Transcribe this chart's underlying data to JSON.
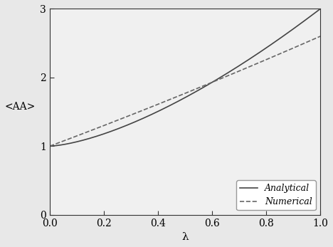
{
  "title": "",
  "xlabel": "λ",
  "ylabel": "<AA>",
  "xlim": [
    0.0,
    1.0
  ],
  "ylim": [
    0.0,
    3.0
  ],
  "xticks": [
    0.0,
    0.2,
    0.4,
    0.6,
    0.8,
    1.0
  ],
  "yticks": [
    0.0,
    1.0,
    2.0,
    3.0
  ],
  "analytical_color": "#444444",
  "numerical_color": "#666666",
  "analytical_linestyle": "solid",
  "numerical_linestyle": "dashed",
  "linewidth": 1.2,
  "legend_labels": [
    "Analytical",
    "Numerical"
  ],
  "legend_loc": "lower right",
  "background_color": "#f0f0f0",
  "font_family": "serif",
  "analytical_a": 1.0,
  "analytical_b": 0.5,
  "analytical_c": 1.5,
  "numerical_a1": 1.6,
  "numerical_b1": -0.6
}
